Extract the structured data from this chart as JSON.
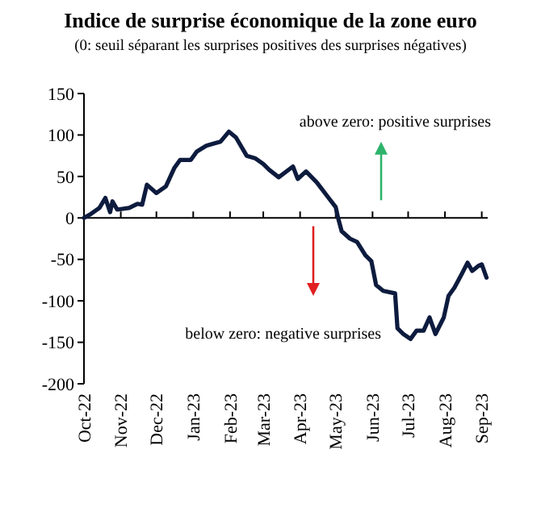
{
  "chart_data": {
    "type": "line",
    "title": "Indice de surprise économique de la zone euro",
    "subtitle": "(0: seuil séparant les surprises positives des surprises négatives)",
    "annotations": [
      "above zero: positive surprises",
      "below zero: negative surprises"
    ],
    "x": [
      "2022-10-01",
      "2022-10-07",
      "2022-10-14",
      "2022-10-19",
      "2022-10-23",
      "2022-10-25",
      "2022-10-29",
      "2022-11-08",
      "2022-11-15",
      "2022-11-19",
      "2022-11-23",
      "2022-12-01",
      "2022-12-09",
      "2022-12-16",
      "2022-12-21",
      "2022-12-30",
      "2023-01-04",
      "2023-01-12",
      "2023-01-19",
      "2023-01-24",
      "2023-01-31",
      "2023-02-06",
      "2023-02-15",
      "2023-02-22",
      "2023-03-01",
      "2023-03-06",
      "2023-03-14",
      "2023-03-26",
      "2023-03-30",
      "2023-04-06",
      "2023-04-15",
      "2023-04-24",
      "2023-05-01",
      "2023-05-03",
      "2023-05-06",
      "2023-05-13",
      "2023-05-19",
      "2023-05-26",
      "2023-05-31",
      "2023-06-04",
      "2023-06-10",
      "2023-06-20",
      "2023-06-22",
      "2023-06-27",
      "2023-07-03",
      "2023-07-08",
      "2023-07-14",
      "2023-07-19",
      "2023-07-24",
      "2023-07-31",
      "2023-08-04",
      "2023-08-09",
      "2023-08-15",
      "2023-08-20",
      "2023-08-24",
      "2023-08-29",
      "2023-09-01",
      "2023-09-05"
    ],
    "series": [
      {
        "color": "#0d1b3e",
        "values": [
          0,
          5,
          12,
          24,
          7,
          20,
          10,
          12,
          17,
          16,
          40,
          30,
          38,
          60,
          70,
          70,
          80,
          87,
          90,
          92,
          104,
          97,
          75,
          72,
          65,
          58,
          49,
          62,
          47,
          56,
          43,
          26,
          13,
          0,
          -16,
          -25,
          -29,
          -45,
          -52,
          -81,
          -88,
          -91,
          -133,
          -140,
          -146,
          -136,
          -136,
          -120,
          -140,
          -120,
          -94,
          -84,
          -68,
          -54,
          -64,
          -58,
          -56,
          -72
        ]
      }
    ],
    "xlim": [
      "2022-10-01",
      "2023-09-06"
    ],
    "xticks": [
      {
        "value": "2022-10-01",
        "label": "Oct-22"
      },
      {
        "value": "2022-11-01",
        "label": "Nov-22"
      },
      {
        "value": "2022-12-01",
        "label": "Dec-22"
      },
      {
        "value": "2023-01-01",
        "label": "Jan-23"
      },
      {
        "value": "2023-02-01",
        "label": "Feb-23"
      },
      {
        "value": "2023-03-01",
        "label": "Mar-23"
      },
      {
        "value": "2023-04-01",
        "label": "Apr-23"
      },
      {
        "value": "2023-05-01",
        "label": "May-23"
      },
      {
        "value": "2023-06-01",
        "label": "Jun-23"
      },
      {
        "value": "2023-07-01",
        "label": "Jul-23"
      },
      {
        "value": "2023-08-01",
        "label": "Aug-23"
      },
      {
        "value": "2023-09-01",
        "label": "Sep-23"
      }
    ],
    "ylim": [
      -200,
      150
    ],
    "yticks": [
      -200,
      -150,
      -100,
      -50,
      0,
      50,
      100,
      150
    ],
    "marker": "none",
    "line_style": "solid"
  }
}
